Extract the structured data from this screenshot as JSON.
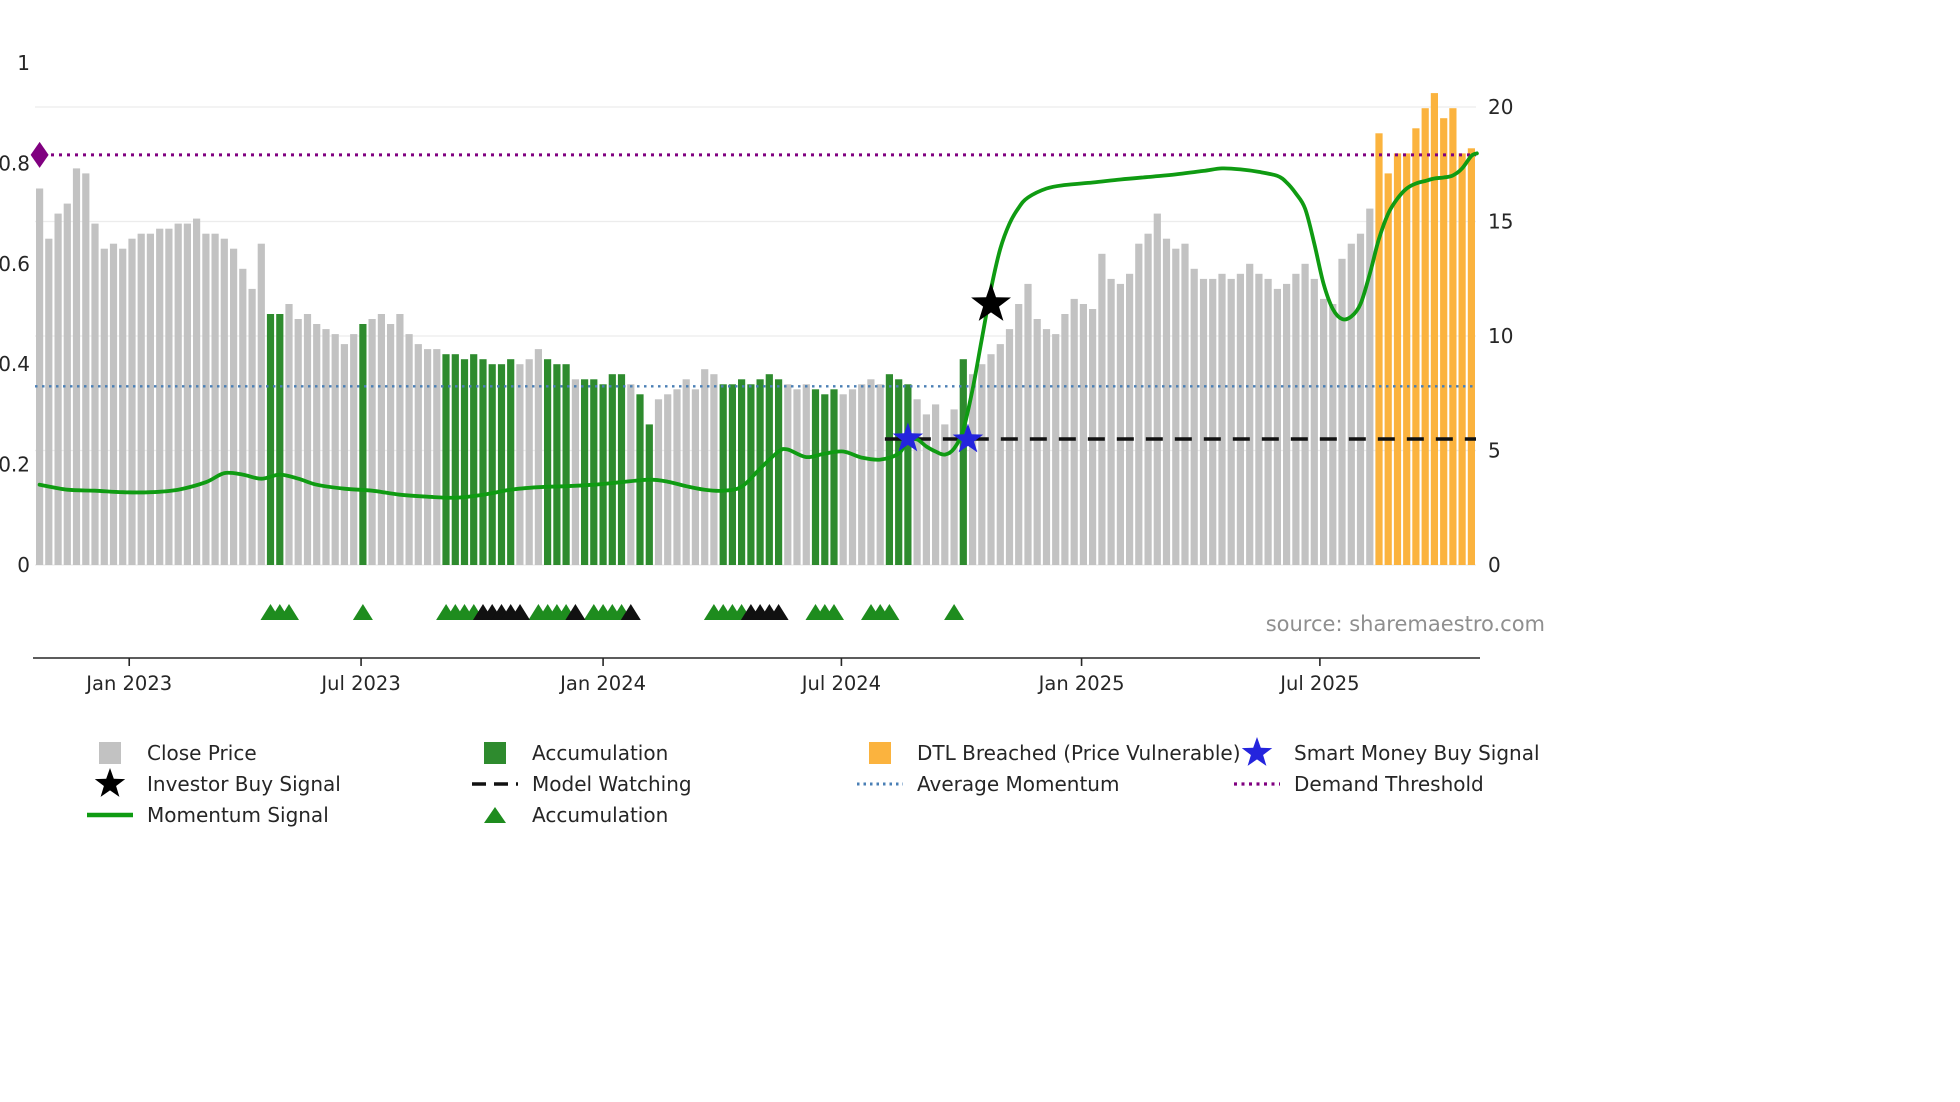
{
  "source_text": "source: sharemaestro.com",
  "colors": {
    "close_price": "#c2c2c2",
    "accumulation": "#2e8b2e",
    "dtl_breached": "#fbb33e",
    "momentum_signal": "#0f9b12",
    "average_momentum": "#4a7fb5",
    "demand_threshold": "#800080",
    "model_watching": "#111111",
    "smart_money": "#2424dd",
    "investor_buy": "#000000",
    "triangle_green": "#1e8c1e",
    "triangle_black": "#111111",
    "axis_text": "#262626",
    "gridline": "#ececec"
  },
  "chart_data": {
    "type": "bar",
    "title": "",
    "xlabel": "",
    "ylabel": "",
    "x_axis": {
      "tick_labels": [
        "Jan 2023",
        "Jul 2023",
        "Jan 2024",
        "Jul 2024",
        "Jan 2025",
        "Jul 2025"
      ],
      "tick_weeks": [
        9.7,
        34.8,
        61.0,
        86.8,
        112.8,
        138.6
      ]
    },
    "left_axis": {
      "tick_labels": [
        "0",
        "0.2",
        "0.4",
        "0.6",
        "0.8",
        "1"
      ],
      "tick_values": [
        0,
        0.2,
        0.4,
        0.6,
        0.8,
        1
      ],
      "range": [
        0,
        1
      ]
    },
    "right_axis": {
      "tick_labels": [
        "0",
        "5",
        "10",
        "15",
        "20"
      ],
      "tick_values": [
        0,
        5,
        10,
        15,
        20
      ],
      "range": [
        0,
        20
      ]
    },
    "bars": {
      "description": "Weekly close-price bars, values on left axis 0-1 scale; colors g=Close Price, G=Accumulation, O=DTL Breached",
      "values": [
        0.75,
        0.65,
        0.7,
        0.72,
        0.79,
        0.78,
        0.68,
        0.63,
        0.64,
        0.63,
        0.65,
        0.66,
        0.66,
        0.67,
        0.67,
        0.68,
        0.68,
        0.69,
        0.66,
        0.66,
        0.65,
        0.63,
        0.59,
        0.55,
        0.64,
        0.5,
        0.5,
        0.52,
        0.49,
        0.5,
        0.48,
        0.47,
        0.46,
        0.44,
        0.46,
        0.48,
        0.49,
        0.5,
        0.48,
        0.5,
        0.46,
        0.44,
        0.43,
        0.43,
        0.42,
        0.42,
        0.41,
        0.42,
        0.41,
        0.4,
        0.4,
        0.41,
        0.4,
        0.41,
        0.43,
        0.41,
        0.4,
        0.4,
        0.37,
        0.37,
        0.37,
        0.36,
        0.38,
        0.38,
        0.36,
        0.34,
        0.28,
        0.33,
        0.34,
        0.35,
        0.37,
        0.35,
        0.39,
        0.38,
        0.36,
        0.36,
        0.37,
        0.36,
        0.37,
        0.38,
        0.37,
        0.36,
        0.35,
        0.36,
        0.35,
        0.34,
        0.35,
        0.34,
        0.35,
        0.36,
        0.37,
        0.36,
        0.38,
        0.37,
        0.36,
        0.33,
        0.3,
        0.32,
        0.28,
        0.31,
        0.41,
        0.38,
        0.4,
        0.42,
        0.44,
        0.47,
        0.52,
        0.56,
        0.49,
        0.47,
        0.46,
        0.5,
        0.53,
        0.52,
        0.51,
        0.62,
        0.57,
        0.56,
        0.58,
        0.64,
        0.66,
        0.7,
        0.65,
        0.63,
        0.64,
        0.59,
        0.57,
        0.57,
        0.58,
        0.57,
        0.58,
        0.6,
        0.58,
        0.57,
        0.55,
        0.56,
        0.58,
        0.6,
        0.57,
        0.53,
        0.52,
        0.61,
        0.64,
        0.66,
        0.71,
        0.86,
        0.78,
        0.82,
        0.82,
        0.87,
        0.91,
        0.94,
        0.89,
        0.91,
        0.82,
        0.83
      ],
      "colors": "gggggggggggggggggggggggggGGggggggggGggggggggGGGGGGGGgggGGGgGGGGGgGGgggggggGGGGGGGgggGGGgggggGGGgggggGggggggggggggggggggggggggggggggggggggggggggggOOOOOOOOOOO"
    },
    "momentum_line": {
      "points": [
        [
          0,
          0.16
        ],
        [
          3,
          0.15
        ],
        [
          6,
          0.148
        ],
        [
          9,
          0.145
        ],
        [
          12,
          0.145
        ],
        [
          15,
          0.15
        ],
        [
          18,
          0.165
        ],
        [
          20,
          0.183
        ],
        [
          22,
          0.18
        ],
        [
          24,
          0.172
        ],
        [
          26,
          0.18
        ],
        [
          28,
          0.172
        ],
        [
          30,
          0.16
        ],
        [
          33,
          0.152
        ],
        [
          36,
          0.148
        ],
        [
          39,
          0.14
        ],
        [
          42,
          0.136
        ],
        [
          45,
          0.134
        ],
        [
          48,
          0.14
        ],
        [
          51,
          0.15
        ],
        [
          54,
          0.155
        ],
        [
          57,
          0.157
        ],
        [
          60,
          0.16
        ],
        [
          63,
          0.165
        ],
        [
          66,
          0.17
        ],
        [
          68,
          0.166
        ],
        [
          70,
          0.157
        ],
        [
          72,
          0.15
        ],
        [
          74,
          0.148
        ],
        [
          76,
          0.156
        ],
        [
          78,
          0.192
        ],
        [
          80,
          0.226
        ],
        [
          81,
          0.23
        ],
        [
          83,
          0.215
        ],
        [
          85,
          0.222
        ],
        [
          87,
          0.226
        ],
        [
          89,
          0.214
        ],
        [
          91,
          0.21
        ],
        [
          93,
          0.222
        ],
        [
          94,
          0.248
        ],
        [
          95,
          0.25
        ],
        [
          96,
          0.236
        ],
        [
          97,
          0.226
        ],
        [
          98,
          0.22
        ],
        [
          99,
          0.232
        ],
        [
          100,
          0.27
        ],
        [
          101,
          0.35
        ],
        [
          102,
          0.45
        ],
        [
          103,
          0.55
        ],
        [
          104,
          0.63
        ],
        [
          105,
          0.68
        ],
        [
          106,
          0.712
        ],
        [
          107,
          0.732
        ],
        [
          109,
          0.75
        ],
        [
          111,
          0.757
        ],
        [
          114,
          0.762
        ],
        [
          117,
          0.768
        ],
        [
          120,
          0.773
        ],
        [
          123,
          0.778
        ],
        [
          126,
          0.785
        ],
        [
          128,
          0.79
        ],
        [
          130,
          0.788
        ],
        [
          132,
          0.783
        ],
        [
          134,
          0.775
        ],
        [
          135,
          0.762
        ],
        [
          136,
          0.74
        ],
        [
          137,
          0.71
        ],
        [
          138,
          0.64
        ],
        [
          139,
          0.56
        ],
        [
          140,
          0.51
        ],
        [
          141,
          0.49
        ],
        [
          142,
          0.495
        ],
        [
          143,
          0.52
        ],
        [
          144,
          0.58
        ],
        [
          145,
          0.65
        ],
        [
          146,
          0.7
        ],
        [
          147,
          0.73
        ],
        [
          148,
          0.75
        ],
        [
          149,
          0.76
        ],
        [
          150,
          0.765
        ],
        [
          151,
          0.77
        ],
        [
          152,
          0.772
        ],
        [
          153,
          0.776
        ],
        [
          154,
          0.79
        ],
        [
          155,
          0.815
        ],
        [
          155.6,
          0.82
        ]
      ]
    },
    "hlines": {
      "demand_threshold": 0.817,
      "average_momentum": 0.356,
      "model_watching": {
        "value": 0.251,
        "start_week": 91.5
      }
    },
    "markers": {
      "investor_buy": [
        {
          "week": 103,
          "value": 0.52
        }
      ],
      "smart_money": [
        {
          "week": 94,
          "value": 0.252
        },
        {
          "week": 100.5,
          "value": 0.25
        }
      ],
      "threshold_start": {
        "week": 0,
        "value": 0.817
      }
    },
    "accumulation_markers": {
      "green": [
        25,
        26,
        27,
        35,
        44,
        45,
        46,
        47,
        54,
        55,
        56,
        57,
        60,
        61,
        62,
        63,
        73,
        74,
        75,
        76,
        84,
        85,
        86,
        90,
        91,
        92,
        99
      ],
      "black": [
        48,
        49,
        50,
        51,
        52,
        58,
        64,
        77,
        78,
        79,
        80
      ]
    }
  },
  "legend": {
    "items": [
      {
        "label": "Close Price",
        "swatch": "gray-square"
      },
      {
        "label": "Accumulation",
        "swatch": "green-square"
      },
      {
        "label": "DTL Breached (Price Vulnerable)",
        "swatch": "orange-square"
      },
      {
        "label": "Smart Money Buy Signal",
        "swatch": "blue-star"
      },
      {
        "label": "Investor Buy Signal",
        "swatch": "black-star"
      },
      {
        "label": "Model Watching",
        "swatch": "black-dashed-line"
      },
      {
        "label": "Average Momentum",
        "swatch": "blue-dotted-line"
      },
      {
        "label": "Demand Threshold",
        "swatch": "purple-dotted-line"
      },
      {
        "label": "Momentum Signal",
        "swatch": "green-line"
      },
      {
        "label": "Accumulation",
        "swatch": "green-triangle"
      }
    ]
  }
}
